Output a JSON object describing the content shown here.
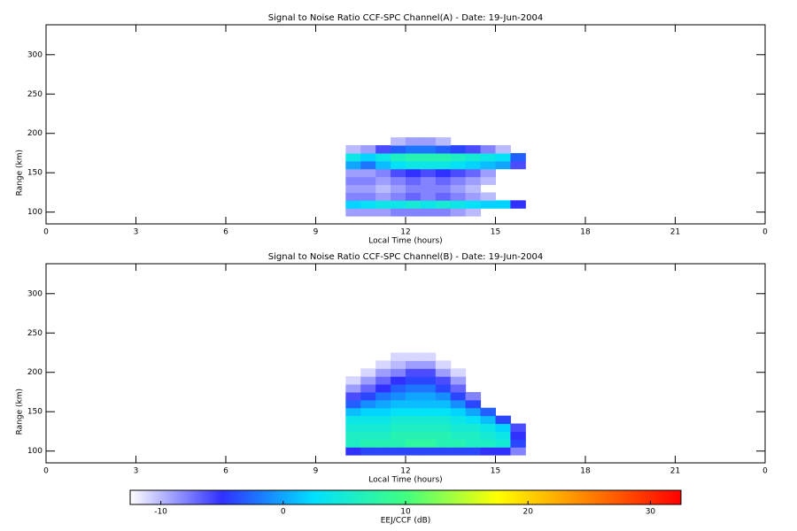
{
  "chart_data": [
    {
      "type": "heatmap",
      "title": "Signal to Noise Ratio CCF-SPC Channel(A) - Date: 19-Jun-2004",
      "xlabel": "Local Time (hours)",
      "ylabel": "Range (km)",
      "xlim": [
        0,
        24
      ],
      "xticks": [
        0,
        3,
        6,
        9,
        12,
        15,
        18,
        21,
        {
          "value": 24,
          "label": "0"
        }
      ],
      "ylim": [
        85,
        338
      ],
      "yticks": [
        100,
        150,
        200,
        250,
        300
      ],
      "x": [
        10.25,
        10.75,
        11.25,
        11.75,
        12.25,
        12.75,
        13.25,
        13.75,
        14.25,
        14.75,
        15.25,
        15.75
      ],
      "y": [
        100,
        110,
        120,
        130,
        140,
        150,
        160,
        170,
        180,
        190
      ],
      "values": [
        [
          -9,
          -9,
          -9,
          -8,
          -8,
          -8,
          -8,
          -9,
          -10,
          null,
          null,
          null
        ],
        [
          2,
          3,
          4,
          4,
          5,
          4,
          5,
          4,
          3,
          2,
          2,
          -5
        ],
        [
          -8,
          -8,
          -9,
          -8,
          -7,
          -8,
          -7,
          -8,
          -9,
          -10,
          null,
          null
        ],
        [
          -9,
          -9,
          -10,
          -9,
          -8,
          -8,
          -8,
          -9,
          -10,
          null,
          null,
          null
        ],
        [
          -8,
          -8,
          -9,
          -8,
          -7,
          -8,
          -7,
          -8,
          -9,
          -10,
          null,
          null
        ],
        [
          -9,
          -9,
          -8,
          -6,
          -5,
          -6,
          -5,
          -6,
          -7,
          -9,
          null,
          null
        ],
        [
          0,
          -2,
          1,
          3,
          4,
          4,
          4,
          3,
          2,
          1,
          0,
          -6
        ],
        [
          4,
          2,
          4,
          6,
          7,
          7,
          7,
          6,
          5,
          4,
          3,
          -3
        ],
        [
          -10,
          -9,
          -6,
          -3,
          -2,
          -2,
          -3,
          -4,
          -6,
          -8,
          -10,
          null
        ],
        [
          null,
          null,
          null,
          -10,
          -9,
          -9,
          -10,
          null,
          null,
          null,
          null,
          null
        ]
      ]
    },
    {
      "type": "heatmap",
      "title": "Signal to Noise Ratio CCF-SPC Channel(B) - Date: 19-Jun-2004",
      "xlabel": "Local Time (hours)",
      "ylabel": "Range (km)",
      "xlim": [
        0,
        24
      ],
      "xticks": [
        0,
        3,
        6,
        9,
        12,
        15,
        18,
        21,
        {
          "value": 24,
          "label": "0"
        }
      ],
      "ylim": [
        85,
        338
      ],
      "yticks": [
        100,
        150,
        200,
        250,
        300
      ],
      "x": [
        10.25,
        10.75,
        11.25,
        11.75,
        12.25,
        12.75,
        13.25,
        13.75,
        14.25,
        14.75,
        15.25,
        15.75
      ],
      "y": [
        100,
        110,
        120,
        130,
        140,
        150,
        160,
        170,
        180,
        190,
        200,
        210,
        220
      ],
      "values": [
        [
          -5,
          -4,
          -4,
          -4,
          -4,
          -4,
          -4,
          -4,
          -4,
          -5,
          -5,
          -8
        ],
        [
          6,
          7,
          7,
          7,
          8,
          8,
          7,
          7,
          6,
          6,
          5,
          -4
        ],
        [
          6,
          6,
          6,
          7,
          7,
          7,
          7,
          6,
          6,
          5,
          4,
          -5
        ],
        [
          5,
          5,
          5,
          6,
          6,
          6,
          6,
          5,
          5,
          4,
          2,
          -6
        ],
        [
          4,
          4,
          4,
          5,
          5,
          5,
          5,
          4,
          3,
          1,
          -4,
          null
        ],
        [
          1,
          2,
          2,
          3,
          3,
          3,
          3,
          2,
          0,
          -3,
          null,
          null
        ],
        [
          -3,
          -1,
          0,
          1,
          1,
          1,
          1,
          -1,
          -4,
          null,
          null,
          null
        ],
        [
          -6,
          -4,
          -2,
          -1,
          0,
          0,
          -1,
          -4,
          -8,
          null,
          null,
          null
        ],
        [
          -9,
          -7,
          -5,
          -3,
          -2,
          -2,
          -4,
          -7,
          null,
          null,
          null,
          null
        ],
        [
          -11,
          -9,
          -7,
          -5,
          -4,
          -4,
          -6,
          -9,
          null,
          null,
          null,
          null
        ],
        [
          null,
          -11,
          -9,
          -8,
          -6,
          -6,
          -9,
          -11,
          null,
          null,
          null,
          null
        ],
        [
          null,
          null,
          -11,
          -10,
          -9,
          -9,
          -11,
          null,
          null,
          null,
          null,
          null
        ],
        [
          null,
          null,
          null,
          -11,
          -11,
          -11,
          null,
          null,
          null,
          null,
          null,
          null
        ]
      ]
    }
  ],
  "colorbar": {
    "label": "EEJ/CCF (dB)",
    "lim": [
      -12.5,
      32.5
    ],
    "ticks": [
      -10,
      0,
      10,
      20,
      30
    ],
    "colors": [
      "#ffffff",
      "#3030ff",
      "#00e0ff",
      "#40ff80",
      "#ffff00",
      "#ff8000",
      "#ff0000"
    ]
  }
}
